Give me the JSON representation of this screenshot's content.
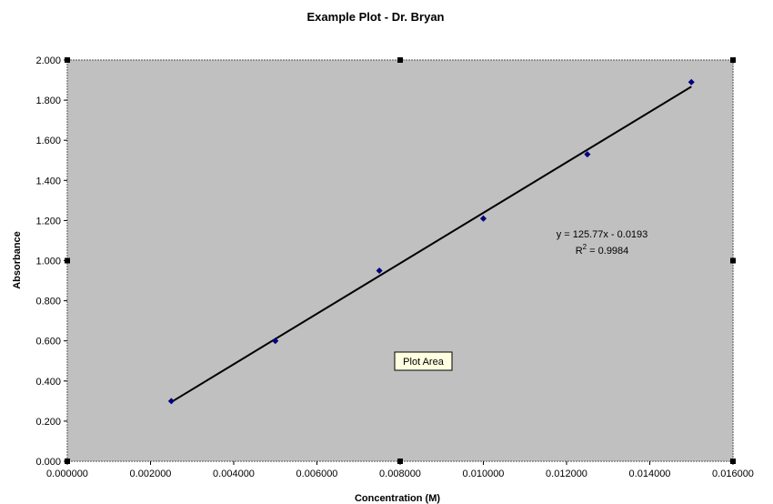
{
  "chart_data": {
    "type": "scatter",
    "title": "Example Plot - Dr. Bryan",
    "xlabel": "Concentration (M)",
    "ylabel": "Absorbance",
    "xlim": [
      0,
      0.016
    ],
    "ylim": [
      0,
      2.0
    ],
    "x_ticks": [
      "0.000000",
      "0.002000",
      "0.004000",
      "0.006000",
      "0.008000",
      "0.010000",
      "0.012000",
      "0.014000",
      "0.016000"
    ],
    "y_ticks": [
      "0.000",
      "0.200",
      "0.400",
      "0.600",
      "0.800",
      "1.000",
      "1.200",
      "1.400",
      "1.600",
      "1.800",
      "2.000"
    ],
    "series": [
      {
        "x": [
          0.0025,
          0.005,
          0.0075,
          0.01,
          0.0125,
          0.015
        ],
        "y": [
          0.3,
          0.6,
          0.95,
          1.21,
          1.53,
          1.89
        ],
        "color": "#000080"
      }
    ],
    "trendline": {
      "type": "linear",
      "slope": 125.77,
      "intercept": -0.0193,
      "x_range": [
        0.0025,
        0.015
      ],
      "equation": "y = 125.77x - 0.0193",
      "r2_label": "R",
      "r2_sup": "2",
      "r2_value": " = 0.9984",
      "color": "#000000"
    },
    "grid": false,
    "legend": "none",
    "plot_background": "#c0c0c0",
    "tooltip": "Plot Area"
  }
}
